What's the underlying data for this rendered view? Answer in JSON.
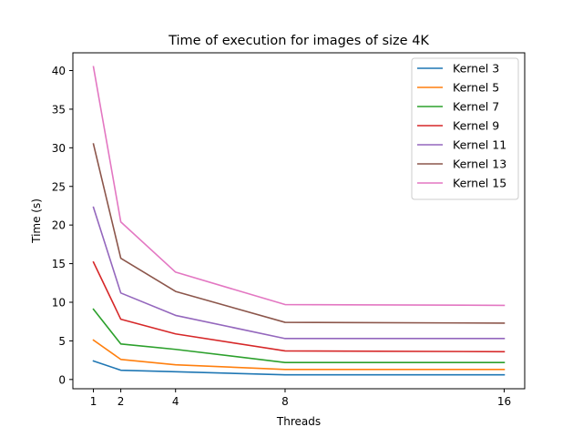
{
  "chart_data": {
    "type": "line",
    "title": "Time of execution for images of size 4K",
    "xlabel": "Threads",
    "ylabel": "Time (s)",
    "x": [
      1,
      2,
      4,
      8,
      16
    ],
    "xticks": [
      1,
      2,
      4,
      8,
      16
    ],
    "yticks": [
      0,
      5,
      10,
      15,
      20,
      25,
      30,
      35,
      40
    ],
    "xlim": [
      0.25,
      16.75
    ],
    "ylim": [
      -1.2,
      42.3
    ],
    "grid": false,
    "legend_position": "upper right",
    "series": [
      {
        "name": "Kernel 3",
        "color": "#1f77b4",
        "values": [
          2.4,
          1.2,
          1.0,
          0.6,
          0.6
        ]
      },
      {
        "name": "Kernel 5",
        "color": "#ff7f0e",
        "values": [
          5.1,
          2.6,
          1.9,
          1.3,
          1.3
        ]
      },
      {
        "name": "Kernel 7",
        "color": "#2ca02c",
        "values": [
          9.1,
          4.6,
          3.9,
          2.2,
          2.2
        ]
      },
      {
        "name": "Kernel 9",
        "color": "#d62728",
        "values": [
          15.2,
          7.8,
          5.9,
          3.7,
          3.6
        ]
      },
      {
        "name": "Kernel 11",
        "color": "#9467bd",
        "values": [
          22.3,
          11.2,
          8.3,
          5.3,
          5.3
        ]
      },
      {
        "name": "Kernel 13",
        "color": "#8c564b",
        "values": [
          30.5,
          15.7,
          11.4,
          7.4,
          7.3
        ]
      },
      {
        "name": "Kernel 15",
        "color": "#e377c2",
        "values": [
          40.5,
          20.4,
          13.9,
          9.7,
          9.6
        ]
      }
    ]
  }
}
